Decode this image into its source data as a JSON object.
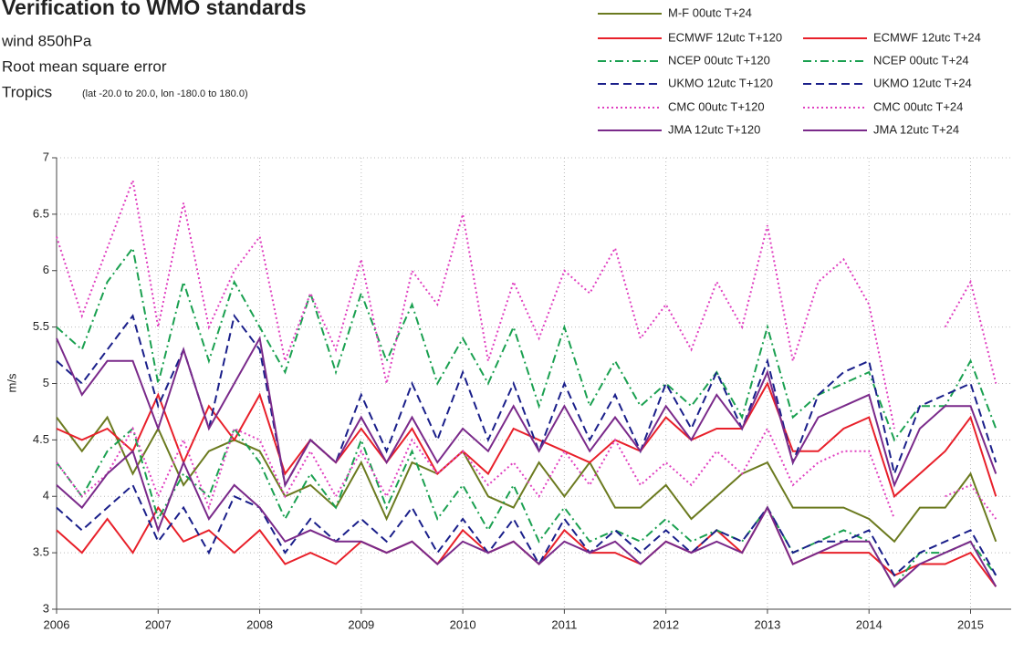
{
  "chart_data": {
    "type": "line",
    "title": "Verification to WMO standards",
    "subtitle": [
      "wind 850hPa",
      "Root mean square error"
    ],
    "region": "Tropics",
    "region_note": "(lat  -20.0 to 20.0, lon  -180.0 to  180.0)",
    "y_label": "m/s",
    "x": [
      2006,
      2006.25,
      2006.5,
      2006.75,
      2007,
      2007.25,
      2007.5,
      2007.75,
      2008,
      2008.25,
      2008.5,
      2008.75,
      2009,
      2009.25,
      2009.5,
      2009.75,
      2010,
      2010.25,
      2010.5,
      2010.75,
      2011,
      2011.25,
      2011.5,
      2011.75,
      2012,
      2012.25,
      2012.5,
      2012.75,
      2013,
      2013.25,
      2013.5,
      2013.75,
      2014,
      2014.25,
      2014.5,
      2014.75,
      2015,
      2015.25
    ],
    "xlim": [
      2006,
      2015.4
    ],
    "xticks": [
      2006,
      2007,
      2008,
      2009,
      2010,
      2011,
      2012,
      2013,
      2014,
      2015
    ],
    "ylim": [
      3,
      7
    ],
    "yticks": [
      3,
      3.5,
      4,
      4.5,
      5,
      5.5,
      6,
      6.5,
      7
    ],
    "grid": true,
    "legend": "top-right",
    "series": [
      {
        "name": "M-F 00utc T+24",
        "color": "#6b7a1f",
        "dash": "solid",
        "values": [
          4.7,
          4.4,
          4.7,
          4.2,
          4.6,
          4.1,
          4.4,
          4.5,
          4.4,
          4.0,
          4.1,
          3.9,
          4.3,
          3.8,
          4.3,
          4.2,
          4.4,
          4.0,
          3.9,
          4.3,
          4.0,
          4.3,
          3.9,
          3.9,
          4.1,
          3.8,
          4.0,
          4.2,
          4.3,
          3.9,
          3.9,
          3.9,
          3.8,
          3.6,
          3.9,
          3.9,
          4.2,
          3.6
        ]
      },
      {
        "name": "ECMWF 12utc T+120",
        "color": "#e8202a",
        "dash": "solid",
        "values": [
          4.6,
          4.5,
          4.6,
          4.4,
          4.9,
          4.3,
          4.8,
          4.5,
          4.9,
          4.2,
          4.5,
          4.3,
          4.6,
          4.3,
          4.6,
          4.2,
          4.4,
          4.2,
          4.6,
          4.5,
          4.4,
          4.3,
          4.5,
          4.4,
          4.7,
          4.5,
          4.6,
          4.6,
          5.0,
          4.4,
          4.4,
          4.6,
          4.7,
          4.0,
          4.2,
          4.4,
          4.7,
          4.0
        ]
      },
      {
        "name": "ECMWF 12utc T+24",
        "color": "#e8202a",
        "dash": "solid",
        "values": [
          3.7,
          3.5,
          3.8,
          3.5,
          3.9,
          3.6,
          3.7,
          3.5,
          3.7,
          3.4,
          3.5,
          3.4,
          3.6,
          3.5,
          3.6,
          3.4,
          3.7,
          3.5,
          3.6,
          3.4,
          3.7,
          3.5,
          3.5,
          3.4,
          3.6,
          3.5,
          3.7,
          3.5,
          3.9,
          3.4,
          3.5,
          3.5,
          3.5,
          3.3,
          3.4,
          3.4,
          3.5,
          3.2
        ]
      },
      {
        "name": "NCEP 00utc T+120",
        "color": "#1aa050",
        "dash": "dashdot",
        "values": [
          5.5,
          5.3,
          5.9,
          6.2,
          5.0,
          5.9,
          5.2,
          5.9,
          5.5,
          5.1,
          5.8,
          5.1,
          5.8,
          5.2,
          5.7,
          5.0,
          5.4,
          5.0,
          5.5,
          4.8,
          5.5,
          4.8,
          5.2,
          4.8,
          5.0,
          4.8,
          5.1,
          4.7,
          5.5,
          4.7,
          4.9,
          5.0,
          5.1,
          4.5,
          4.8,
          4.8,
          5.2,
          4.6
        ]
      },
      {
        "name": "NCEP 00utc T+24",
        "color": "#1aa050",
        "dash": "dashdot",
        "values": [
          4.3,
          4.0,
          4.4,
          4.6,
          3.8,
          4.2,
          4.0,
          4.6,
          4.3,
          3.8,
          4.2,
          3.9,
          4.5,
          3.9,
          4.4,
          3.8,
          4.1,
          3.7,
          4.1,
          3.6,
          3.9,
          3.6,
          3.7,
          3.6,
          3.8,
          3.6,
          3.7,
          3.6,
          3.9,
          3.5,
          3.6,
          3.7,
          3.6,
          3.2,
          3.5,
          3.5,
          3.6,
          3.3
        ]
      },
      {
        "name": "UKMO 12utc T+120",
        "color": "#1a1f8a",
        "dash": "dashed",
        "values": [
          5.2,
          5.0,
          5.3,
          5.6,
          4.8,
          5.3,
          4.6,
          5.6,
          5.3,
          4.1,
          4.5,
          4.3,
          4.9,
          4.4,
          5.0,
          4.5,
          5.1,
          4.5,
          5.0,
          4.4,
          5.0,
          4.5,
          4.9,
          4.4,
          5.0,
          4.6,
          5.1,
          4.6,
          5.2,
          4.3,
          4.9,
          5.1,
          5.2,
          4.2,
          4.8,
          4.9,
          5.0,
          4.3
        ]
      },
      {
        "name": "UKMO 12utc T+24",
        "color": "#1a1f8a",
        "dash": "dashed",
        "values": [
          3.9,
          3.7,
          3.9,
          4.1,
          3.6,
          3.9,
          3.5,
          4.0,
          3.9,
          3.5,
          3.8,
          3.6,
          3.8,
          3.6,
          3.9,
          3.5,
          3.8,
          3.5,
          3.8,
          3.4,
          3.8,
          3.5,
          3.7,
          3.5,
          3.7,
          3.5,
          3.7,
          3.6,
          3.9,
          3.5,
          3.6,
          3.6,
          3.7,
          3.3,
          3.5,
          3.6,
          3.7,
          3.3
        ]
      },
      {
        "name": "CMC 00utc T+120",
        "color": "#e040c0",
        "dash": "dotted",
        "values": [
          6.3,
          5.6,
          6.2,
          6.8,
          5.5,
          6.6,
          5.5,
          6.0,
          6.3,
          5.2,
          5.8,
          5.3,
          6.1,
          5.0,
          6.0,
          5.7,
          6.5,
          5.2,
          5.9,
          5.4,
          6.0,
          5.8,
          6.2,
          5.4,
          5.7,
          5.3,
          5.9,
          5.5,
          6.4,
          5.2,
          5.9,
          6.1,
          5.7,
          4.6,
          null,
          5.5,
          5.9,
          5.0
        ]
      },
      {
        "name": "CMC 00utc T+24",
        "color": "#e040c0",
        "dash": "dotted",
        "values": [
          4.3,
          4.0,
          4.2,
          4.6,
          4.0,
          4.5,
          3.9,
          4.6,
          4.5,
          4.0,
          4.4,
          4.0,
          4.4,
          4.0,
          4.5,
          4.2,
          4.4,
          4.1,
          4.3,
          4.0,
          4.4,
          4.1,
          4.5,
          4.1,
          4.3,
          4.1,
          4.4,
          4.2,
          4.6,
          4.1,
          4.3,
          4.4,
          4.4,
          3.8,
          null,
          4.0,
          4.1,
          3.8
        ]
      },
      {
        "name": "JMA 12utc T+120",
        "color": "#7a2a8a",
        "dash": "solid",
        "values": [
          5.4,
          4.9,
          5.2,
          5.2,
          4.6,
          5.3,
          4.6,
          5.0,
          5.4,
          4.1,
          4.5,
          4.3,
          4.7,
          4.3,
          4.7,
          4.3,
          4.6,
          4.4,
          4.8,
          4.4,
          4.8,
          4.4,
          4.7,
          4.4,
          4.8,
          4.5,
          4.9,
          4.6,
          5.1,
          4.3,
          4.7,
          4.8,
          4.9,
          4.1,
          4.6,
          4.8,
          4.8,
          4.2
        ]
      },
      {
        "name": "JMA 12utc T+24",
        "color": "#7a2a8a",
        "dash": "solid",
        "values": [
          4.1,
          3.9,
          4.2,
          4.4,
          3.7,
          4.3,
          3.8,
          4.1,
          3.9,
          3.6,
          3.7,
          3.6,
          3.6,
          3.5,
          3.6,
          3.4,
          3.6,
          3.5,
          3.6,
          3.4,
          3.6,
          3.5,
          3.6,
          3.4,
          3.6,
          3.5,
          3.6,
          3.5,
          3.9,
          3.4,
          3.5,
          3.6,
          3.6,
          3.2,
          3.4,
          3.5,
          3.6,
          3.2
        ]
      }
    ]
  }
}
